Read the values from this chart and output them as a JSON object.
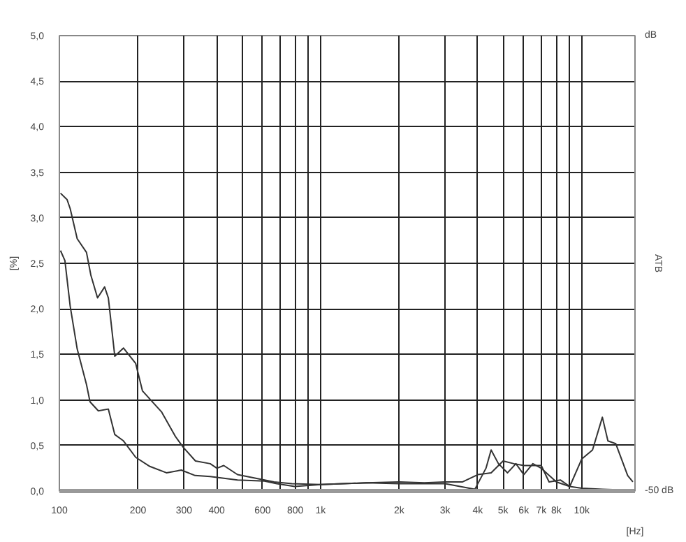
{
  "chart_data": {
    "type": "line",
    "xlabel": "[Hz]",
    "ylabel": "[%]",
    "y2label": "ATB",
    "log": "x",
    "grid": true,
    "marker": "none",
    "line_style": "solid",
    "annotations": [
      "dB",
      "-50 dB"
    ],
    "xlim": [
      100,
      16000
    ],
    "ylim": [
      0,
      5
    ],
    "xticks": [
      {
        "value": 100,
        "label": "100"
      },
      {
        "value": 200,
        "label": "200"
      },
      {
        "value": 300,
        "label": "300"
      },
      {
        "value": 400,
        "label": "400"
      },
      {
        "value": 500,
        "label": null
      },
      {
        "value": 600,
        "label": "600"
      },
      {
        "value": 700,
        "label": null
      },
      {
        "value": 800,
        "label": "800"
      },
      {
        "value": 900,
        "label": null
      },
      {
        "value": 1000,
        "label": "1k"
      },
      {
        "value": 2000,
        "label": "2k"
      },
      {
        "value": 3000,
        "label": "3k"
      },
      {
        "value": 4000,
        "label": "4k"
      },
      {
        "value": 5000,
        "label": "5k"
      },
      {
        "value": 6000,
        "label": "6k"
      },
      {
        "value": 7000,
        "label": "7k"
      },
      {
        "value": 8000,
        "label": "8k"
      },
      {
        "value": 9000,
        "label": null
      },
      {
        "value": 10000,
        "label": "10k"
      }
    ],
    "yticks": [
      {
        "value": 0,
        "label": "0,0"
      },
      {
        "value": 0.5,
        "label": "0,5"
      },
      {
        "value": 1,
        "label": "1,0"
      },
      {
        "value": 1.5,
        "label": "1,5"
      },
      {
        "value": 2,
        "label": "2,0"
      },
      {
        "value": 2.5,
        "label": "2,5"
      },
      {
        "value": 3,
        "label": "3,0"
      },
      {
        "value": 3.5,
        "label": "3,5"
      },
      {
        "value": 4,
        "label": "4,0"
      },
      {
        "value": 4.5,
        "label": "4,5"
      },
      {
        "value": 5,
        "label": "5,0"
      }
    ],
    "series": [
      {
        "color": "#333333",
        "x": [
          101,
          107,
          110,
          117,
          127,
          132,
          140,
          149,
          154,
          163,
          176,
          196,
          208,
          246,
          278,
          298,
          332,
          378,
          401,
          426,
          481,
          664,
          777,
          1000,
          1500,
          2000,
          2500,
          3000,
          3500,
          4000,
          4500,
          5000,
          5500,
          6000,
          7000,
          7500,
          8300,
          9000,
          10000,
          11000,
          12000,
          12600,
          13500,
          15000,
          15700
        ],
        "values": [
          3.27,
          3.2,
          3.1,
          2.77,
          2.62,
          2.37,
          2.12,
          2.24,
          2.12,
          1.48,
          1.57,
          1.4,
          1.1,
          0.87,
          0.6,
          0.48,
          0.33,
          0.3,
          0.25,
          0.28,
          0.18,
          0.1,
          0.08,
          0.07,
          0.09,
          0.1,
          0.09,
          0.1,
          0.1,
          0.18,
          0.2,
          0.33,
          0.3,
          0.28,
          0.28,
          0.1,
          0.12,
          0.05,
          0.35,
          0.45,
          0.81,
          0.55,
          0.52,
          0.17,
          0.1
        ]
      },
      {
        "color": "#333333",
        "x": [
          101,
          105,
          110,
          117,
          127,
          131,
          141,
          154,
          163,
          176,
          196,
          222,
          257,
          293,
          331,
          378,
          481,
          610,
          680,
          796,
          1000,
          1500,
          2000,
          3000,
          3900,
          4300,
          4500,
          4800,
          5200,
          5600,
          6000,
          6500,
          7000,
          8000,
          9000,
          10000,
          12000,
          15000
        ],
        "values": [
          2.64,
          2.53,
          2.03,
          1.56,
          1.17,
          0.98,
          0.88,
          0.9,
          0.62,
          0.55,
          0.37,
          0.27,
          0.2,
          0.23,
          0.17,
          0.16,
          0.12,
          0.11,
          0.08,
          0.05,
          0.07,
          0.09,
          0.08,
          0.08,
          0.02,
          0.25,
          0.45,
          0.3,
          0.2,
          0.3,
          0.18,
          0.3,
          0.25,
          0.1,
          0.05,
          0.03,
          0.02,
          0.01
        ]
      }
    ]
  }
}
